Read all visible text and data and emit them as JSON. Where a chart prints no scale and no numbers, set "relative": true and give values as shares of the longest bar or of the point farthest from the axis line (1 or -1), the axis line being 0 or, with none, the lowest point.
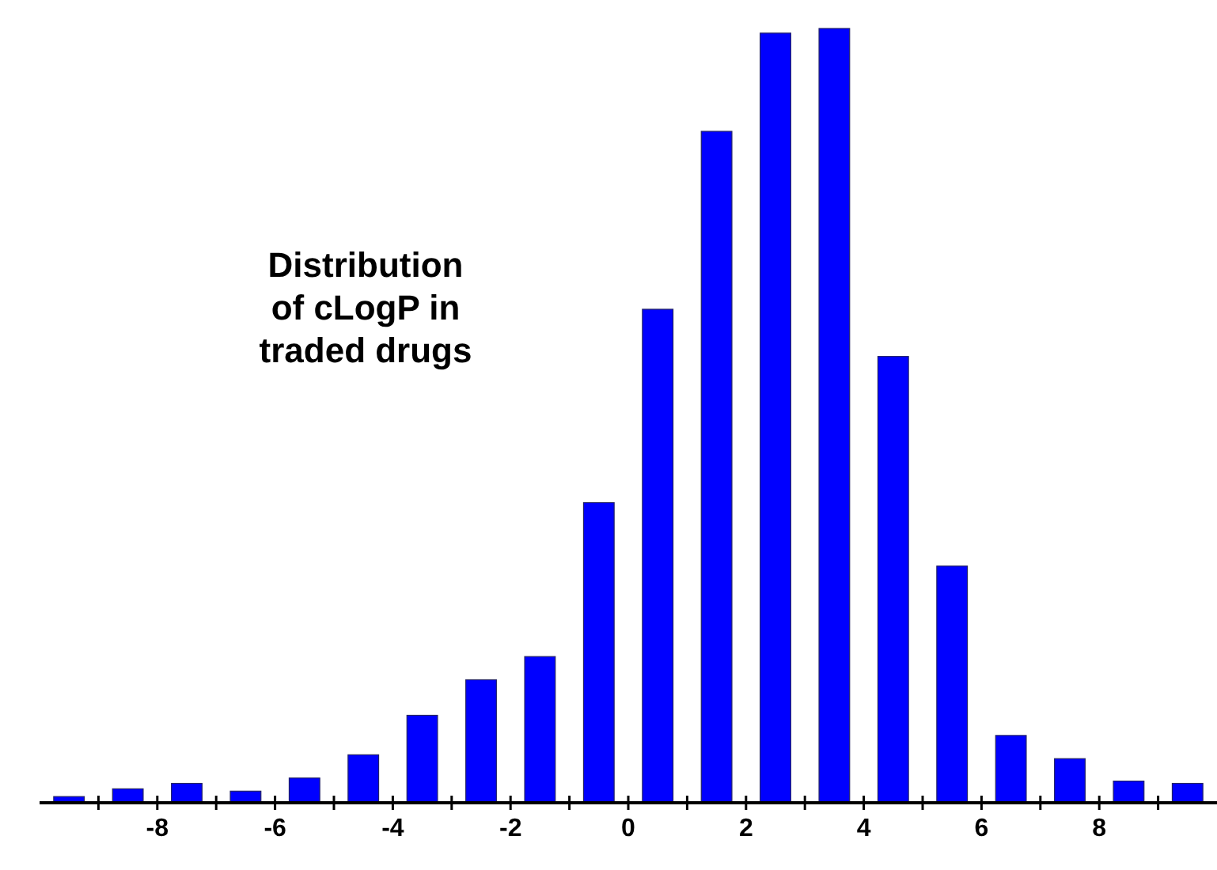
{
  "chart_data": {
    "type": "bar",
    "title": "Distribution\nof cLogP in\ntraded drugs",
    "relative": true,
    "color": "#0000ff",
    "x": [
      -9.5,
      -8.5,
      -7.5,
      -6.5,
      -5.5,
      -4.5,
      -3.5,
      -2.5,
      -1.5,
      -0.5,
      0.5,
      1.5,
      2.5,
      3.5,
      4.5,
      5.5,
      6.5,
      7.5,
      8.5,
      9.5
    ],
    "values": [
      0.007,
      0.017,
      0.024,
      0.014,
      0.031,
      0.061,
      0.112,
      0.158,
      0.188,
      0.387,
      0.637,
      0.867,
      0.994,
      1,
      0.576,
      0.305,
      0.086,
      0.056,
      0.027,
      0.024
    ],
    "xlim": [
      -10,
      10
    ],
    "xticks": [
      {
        "value": -9,
        "label": null
      },
      -8,
      {
        "value": -7,
        "label": null
      },
      -6,
      {
        "value": -5,
        "label": null
      },
      -4,
      {
        "value": -3,
        "label": null
      },
      -2,
      {
        "value": -1,
        "label": null
      },
      0,
      {
        "value": 1,
        "label": null
      },
      2,
      {
        "value": 3,
        "label": null
      },
      4,
      {
        "value": 5,
        "label": null
      },
      6,
      {
        "value": 7,
        "label": null
      },
      8,
      {
        "value": 9,
        "label": null
      }
    ]
  }
}
